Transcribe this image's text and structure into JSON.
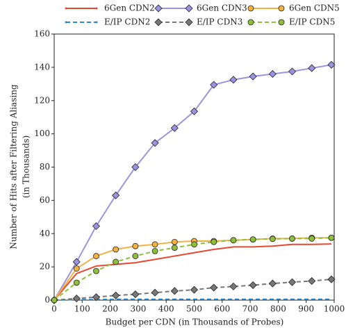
{
  "chart_data": {
    "type": "line",
    "xlabel": "Budget per CDN (in Thousands of Probes)",
    "ylabel": [
      "Number of Hits after Filtering Aliasing",
      "(in Thousands)"
    ],
    "x": [
      0,
      80,
      150,
      220,
      290,
      360,
      430,
      500,
      570,
      640,
      710,
      780,
      850,
      920,
      990
    ],
    "series": [
      {
        "name": "6Gen CDN2",
        "color": "#e8472f",
        "dash": false,
        "marker": "none",
        "values": [
          0,
          16,
          20.5,
          21.5,
          22.5,
          24.5,
          26.5,
          28.5,
          30.5,
          32,
          32,
          32.5,
          33.5,
          33.5,
          33.8
        ]
      },
      {
        "name": "E/IP CDN2",
        "color": "#2a87c8",
        "dash": true,
        "marker": "none",
        "values": [
          0,
          0.3,
          0.4,
          0.5,
          0.5,
          0.5,
          0.5,
          0.5,
          0.5,
          0.5,
          0.5,
          0.5,
          0.5,
          0.5,
          0.5
        ]
      },
      {
        "name": "6Gen CDN3",
        "color": "#9b93e0",
        "dash": false,
        "marker": "diamond",
        "values": [
          0,
          23,
          44.5,
          63,
          80,
          94.5,
          103.5,
          113.5,
          129.5,
          132.5,
          134.5,
          136,
          137.5,
          139.5,
          141.5
        ]
      },
      {
        "name": "E/IP CDN3",
        "color": "#777777",
        "dash": true,
        "marker": "diamond",
        "values": [
          0,
          1,
          1.8,
          2.8,
          3.5,
          4.5,
          5.5,
          6.2,
          7.5,
          8.2,
          9,
          10,
          10.8,
          11.5,
          12.5
        ]
      },
      {
        "name": "6Gen CDN5",
        "color": "#f2b140",
        "dash": false,
        "marker": "circle",
        "values": [
          0,
          19,
          26.5,
          30.5,
          32.5,
          33.5,
          35,
          35.5,
          35.5,
          36,
          36.5,
          37,
          37,
          37.5,
          37.5
        ]
      },
      {
        "name": "E/IP CDN5",
        "color": "#8fbf3a",
        "dash": true,
        "marker": "circle",
        "values": [
          0,
          10.5,
          17.5,
          23,
          26.5,
          29.5,
          31.5,
          33.5,
          35,
          36,
          36.5,
          36.8,
          37,
          37,
          37.5
        ]
      }
    ],
    "xlim": [
      0,
      1000
    ],
    "xticks": [
      0,
      100,
      200,
      300,
      400,
      500,
      600,
      700,
      800,
      900,
      1000
    ],
    "ylim": [
      0,
      160
    ],
    "yticks": [
      0,
      20,
      40,
      60,
      80,
      100,
      120,
      140,
      160
    ],
    "grid": false,
    "legend": "top"
  }
}
